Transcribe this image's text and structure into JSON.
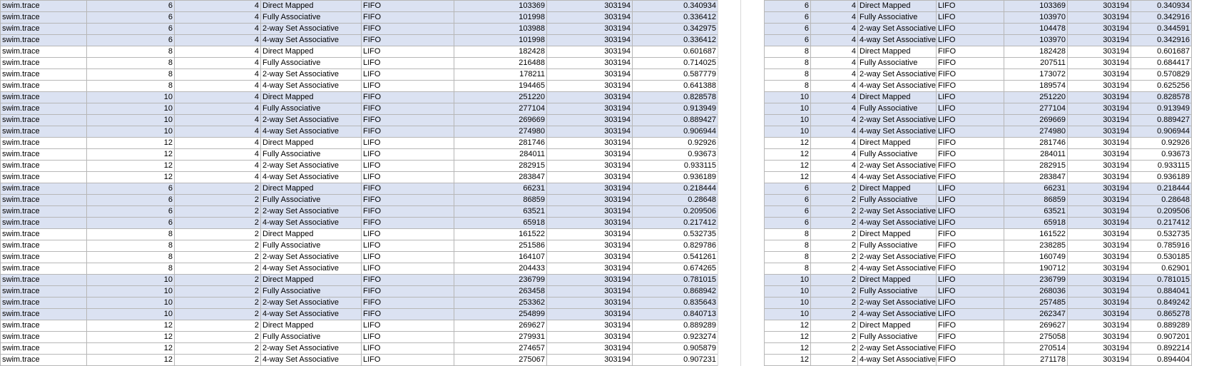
{
  "colors": {
    "band": "#dbe2f2",
    "gridline": "#b7b7b7"
  },
  "left_rows": [
    [
      "swim.trace",
      "6",
      "4",
      "Direct Mapped",
      "FIFO",
      "103369",
      "303194",
      "0.340934"
    ],
    [
      "swim.trace",
      "6",
      "4",
      "Fully Associative",
      "FIFO",
      "101998",
      "303194",
      "0.336412"
    ],
    [
      "swim.trace",
      "6",
      "4",
      "2-way Set Associative",
      "FIFO",
      "103988",
      "303194",
      "0.342975"
    ],
    [
      "swim.trace",
      "6",
      "4",
      "4-way Set Associative",
      "FIFO",
      "101998",
      "303194",
      "0.336412"
    ],
    [
      "swim.trace",
      "8",
      "4",
      "Direct Mapped",
      "LIFO",
      "182428",
      "303194",
      "0.601687"
    ],
    [
      "swim.trace",
      "8",
      "4",
      "Fully Associative",
      "LIFO",
      "216488",
      "303194",
      "0.714025"
    ],
    [
      "swim.trace",
      "8",
      "4",
      "2-way Set Associative",
      "LIFO",
      "178211",
      "303194",
      "0.587779"
    ],
    [
      "swim.trace",
      "8",
      "4",
      "4-way Set Associative",
      "LIFO",
      "194465",
      "303194",
      "0.641388"
    ],
    [
      "swim.trace",
      "10",
      "4",
      "Direct Mapped",
      "FIFO",
      "251220",
      "303194",
      "0.828578"
    ],
    [
      "swim.trace",
      "10",
      "4",
      "Fully Associative",
      "FIFO",
      "277104",
      "303194",
      "0.913949"
    ],
    [
      "swim.trace",
      "10",
      "4",
      "2-way Set Associative",
      "FIFO",
      "269669",
      "303194",
      "0.889427"
    ],
    [
      "swim.trace",
      "10",
      "4",
      "4-way Set Associative",
      "FIFO",
      "274980",
      "303194",
      "0.906944"
    ],
    [
      "swim.trace",
      "12",
      "4",
      "Direct Mapped",
      "LIFO",
      "281746",
      "303194",
      "0.92926"
    ],
    [
      "swim.trace",
      "12",
      "4",
      "Fully Associative",
      "LIFO",
      "284011",
      "303194",
      "0.93673"
    ],
    [
      "swim.trace",
      "12",
      "4",
      "2-way Set Associative",
      "LIFO",
      "282915",
      "303194",
      "0.933115"
    ],
    [
      "swim.trace",
      "12",
      "4",
      "4-way Set Associative",
      "LIFO",
      "283847",
      "303194",
      "0.936189"
    ],
    [
      "swim.trace",
      "6",
      "2",
      "Direct Mapped",
      "FIFO",
      "66231",
      "303194",
      "0.218444"
    ],
    [
      "swim.trace",
      "6",
      "2",
      "Fully Associative",
      "FIFO",
      "86859",
      "303194",
      "0.28648"
    ],
    [
      "swim.trace",
      "6",
      "2",
      "2-way Set Associative",
      "FIFO",
      "63521",
      "303194",
      "0.209506"
    ],
    [
      "swim.trace",
      "6",
      "2",
      "4-way Set Associative",
      "FIFO",
      "65918",
      "303194",
      "0.217412"
    ],
    [
      "swim.trace",
      "8",
      "2",
      "Direct Mapped",
      "LIFO",
      "161522",
      "303194",
      "0.532735"
    ],
    [
      "swim.trace",
      "8",
      "2",
      "Fully Associative",
      "LIFO",
      "251586",
      "303194",
      "0.829786"
    ],
    [
      "swim.trace",
      "8",
      "2",
      "2-way Set Associative",
      "LIFO",
      "164107",
      "303194",
      "0.541261"
    ],
    [
      "swim.trace",
      "8",
      "2",
      "4-way Set Associative",
      "LIFO",
      "204433",
      "303194",
      "0.674265"
    ],
    [
      "swim.trace",
      "10",
      "2",
      "Direct Mapped",
      "FIFO",
      "236799",
      "303194",
      "0.781015"
    ],
    [
      "swim.trace",
      "10",
      "2",
      "Fully Associative",
      "FIFO",
      "263458",
      "303194",
      "0.868942"
    ],
    [
      "swim.trace",
      "10",
      "2",
      "2-way Set Associative",
      "FIFO",
      "253362",
      "303194",
      "0.835643"
    ],
    [
      "swim.trace",
      "10",
      "2",
      "4-way Set Associative",
      "FIFO",
      "254899",
      "303194",
      "0.840713"
    ],
    [
      "swim.trace",
      "12",
      "2",
      "Direct Mapped",
      "LIFO",
      "269627",
      "303194",
      "0.889289"
    ],
    [
      "swim.trace",
      "12",
      "2",
      "Fully Associative",
      "LIFO",
      "279931",
      "303194",
      "0.923274"
    ],
    [
      "swim.trace",
      "12",
      "2",
      "2-way Set Associative",
      "LIFO",
      "274657",
      "303194",
      "0.905879"
    ],
    [
      "swim.trace",
      "12",
      "2",
      "4-way Set Associative",
      "LIFO",
      "275067",
      "303194",
      "0.907231"
    ]
  ],
  "right_rows": [
    [
      "6",
      "4",
      "Direct Mapped",
      "LIFO",
      "103369",
      "303194",
      "0.340934"
    ],
    [
      "6",
      "4",
      "Fully Associative",
      "LIFO",
      "103970",
      "303194",
      "0.342916"
    ],
    [
      "6",
      "4",
      "2-way Set Associative",
      "LIFO",
      "104478",
      "303194",
      "0.344591"
    ],
    [
      "6",
      "4",
      "4-way Set Associative",
      "LIFO",
      "103970",
      "303194",
      "0.342916"
    ],
    [
      "8",
      "4",
      "Direct Mapped",
      "FIFO",
      "182428",
      "303194",
      "0.601687"
    ],
    [
      "8",
      "4",
      "Fully Associative",
      "FIFO",
      "207511",
      "303194",
      "0.684417"
    ],
    [
      "8",
      "4",
      "2-way Set Associative",
      "FIFO",
      "173072",
      "303194",
      "0.570829"
    ],
    [
      "8",
      "4",
      "4-way Set Associative",
      "FIFO",
      "189574",
      "303194",
      "0.625256"
    ],
    [
      "10",
      "4",
      "Direct Mapped",
      "LIFO",
      "251220",
      "303194",
      "0.828578"
    ],
    [
      "10",
      "4",
      "Fully Associative",
      "LIFO",
      "277104",
      "303194",
      "0.913949"
    ],
    [
      "10",
      "4",
      "2-way Set Associative",
      "LIFO",
      "269669",
      "303194",
      "0.889427"
    ],
    [
      "10",
      "4",
      "4-way Set Associative",
      "LIFO",
      "274980",
      "303194",
      "0.906944"
    ],
    [
      "12",
      "4",
      "Direct Mapped",
      "FIFO",
      "281746",
      "303194",
      "0.92926"
    ],
    [
      "12",
      "4",
      "Fully Associative",
      "FIFO",
      "284011",
      "303194",
      "0.93673"
    ],
    [
      "12",
      "4",
      "2-way Set Associative",
      "FIFO",
      "282915",
      "303194",
      "0.933115"
    ],
    [
      "12",
      "4",
      "4-way Set Associative",
      "FIFO",
      "283847",
      "303194",
      "0.936189"
    ],
    [
      "6",
      "2",
      "Direct Mapped",
      "LIFO",
      "66231",
      "303194",
      "0.218444"
    ],
    [
      "6",
      "2",
      "Fully Associative",
      "LIFO",
      "86859",
      "303194",
      "0.28648"
    ],
    [
      "6",
      "2",
      "2-way Set Associative",
      "LIFO",
      "63521",
      "303194",
      "0.209506"
    ],
    [
      "6",
      "2",
      "4-way Set Associative",
      "LIFO",
      "65918",
      "303194",
      "0.217412"
    ],
    [
      "8",
      "2",
      "Direct Mapped",
      "FIFO",
      "161522",
      "303194",
      "0.532735"
    ],
    [
      "8",
      "2",
      "Fully Associative",
      "FIFO",
      "238285",
      "303194",
      "0.785916"
    ],
    [
      "8",
      "2",
      "2-way Set Associative",
      "FIFO",
      "160749",
      "303194",
      "0.530185"
    ],
    [
      "8",
      "2",
      "4-way Set Associative",
      "FIFO",
      "190712",
      "303194",
      "0.62901"
    ],
    [
      "10",
      "2",
      "Direct Mapped",
      "LIFO",
      "236799",
      "303194",
      "0.781015"
    ],
    [
      "10",
      "2",
      "Fully Associative",
      "LIFO",
      "268036",
      "303194",
      "0.884041"
    ],
    [
      "10",
      "2",
      "2-way Set Associative",
      "LIFO",
      "257485",
      "303194",
      "0.849242"
    ],
    [
      "10",
      "2",
      "4-way Set Associative",
      "LIFO",
      "262347",
      "303194",
      "0.865278"
    ],
    [
      "12",
      "2",
      "Direct Mapped",
      "FIFO",
      "269627",
      "303194",
      "0.889289"
    ],
    [
      "12",
      "2",
      "Fully Associative",
      "FIFO",
      "275058",
      "303194",
      "0.907201"
    ],
    [
      "12",
      "2",
      "2-way Set Associative",
      "FIFO",
      "270514",
      "303194",
      "0.892214"
    ],
    [
      "12",
      "2",
      "4-way Set Associative",
      "FIFO",
      "271178",
      "303194",
      "0.894404"
    ]
  ]
}
